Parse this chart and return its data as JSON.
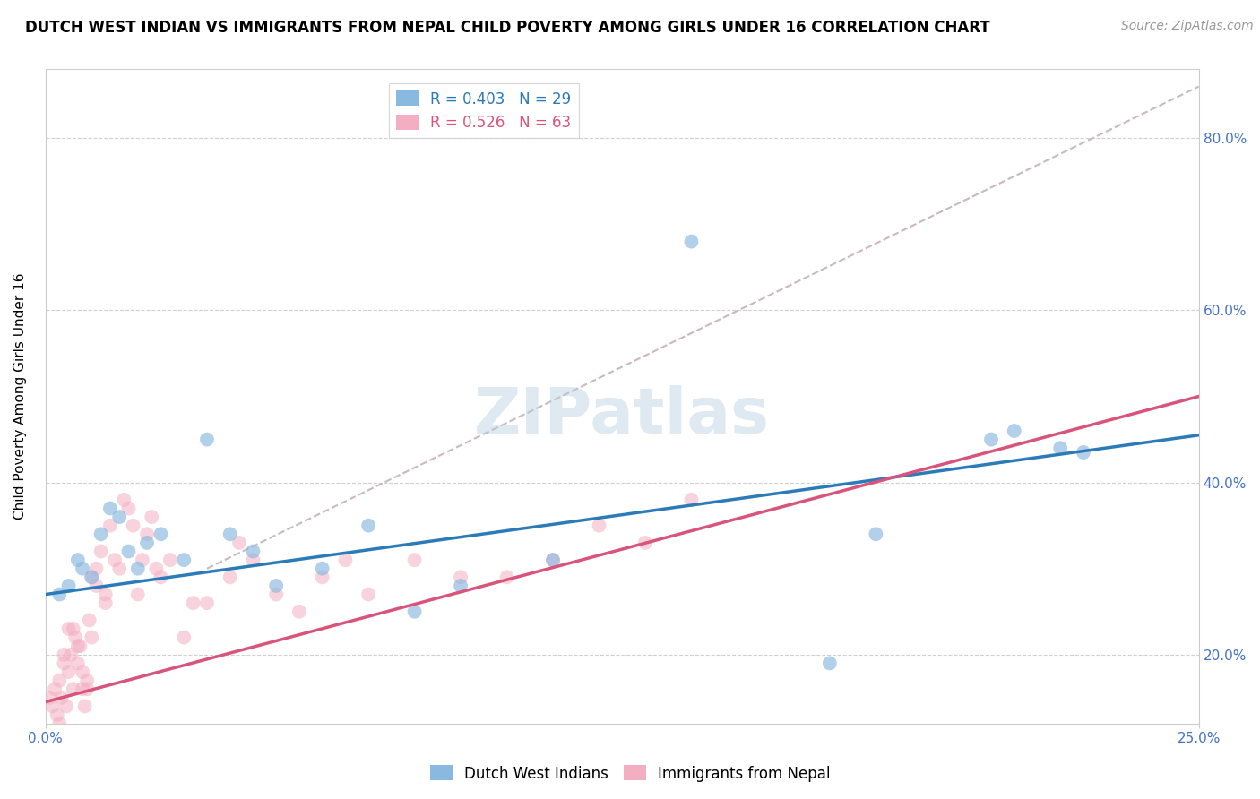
{
  "title": "DUTCH WEST INDIAN VS IMMIGRANTS FROM NEPAL CHILD POVERTY AMONG GIRLS UNDER 16 CORRELATION CHART",
  "source": "Source: ZipAtlas.com",
  "ylabel": "Child Poverty Among Girls Under 16",
  "watermark": "ZIPatlas",
  "xlim": [
    0.0,
    25.0
  ],
  "ylim": [
    12.0,
    88.0
  ],
  "ytick_values": [
    20.0,
    40.0,
    60.0,
    80.0
  ],
  "blue_R": 0.403,
  "blue_N": 29,
  "pink_R": 0.526,
  "pink_N": 63,
  "blue_color": "#89b8e0",
  "pink_color": "#f4aec2",
  "blue_line_color": "#2b7bb9",
  "pink_line_color": "#d9547a",
  "gray_dash_color": "#ccb8c0",
  "legend_label_blue": "Dutch West Indians",
  "legend_label_pink": "Immigrants from Nepal",
  "blue_scatter_x": [
    0.3,
    0.5,
    0.7,
    0.8,
    1.0,
    1.2,
    1.4,
    1.6,
    1.8,
    2.0,
    2.2,
    2.5,
    3.0,
    3.5,
    4.0,
    4.5,
    5.0,
    6.0,
    7.0,
    8.0,
    9.0,
    11.0,
    14.0,
    17.0,
    18.0,
    20.5,
    21.0,
    22.0,
    22.5
  ],
  "blue_scatter_y": [
    27.0,
    28.0,
    31.0,
    30.0,
    29.0,
    34.0,
    37.0,
    36.0,
    32.0,
    30.0,
    33.0,
    34.0,
    31.0,
    45.0,
    34.0,
    32.0,
    28.0,
    30.0,
    35.0,
    25.0,
    28.0,
    31.0,
    68.0,
    19.0,
    34.0,
    45.0,
    46.0,
    44.0,
    43.5
  ],
  "pink_scatter_x": [
    0.1,
    0.15,
    0.2,
    0.25,
    0.3,
    0.35,
    0.4,
    0.45,
    0.5,
    0.55,
    0.6,
    0.65,
    0.7,
    0.75,
    0.8,
    0.85,
    0.9,
    0.95,
    1.0,
    1.0,
    1.1,
    1.2,
    1.3,
    1.4,
    1.5,
    1.6,
    1.7,
    1.8,
    2.0,
    2.1,
    2.2,
    2.4,
    2.5,
    2.7,
    3.0,
    3.5,
    4.0,
    4.5,
    5.0,
    5.5,
    6.0,
    6.5,
    7.0,
    8.0,
    9.0,
    10.0,
    11.0,
    12.0,
    13.0,
    14.0,
    3.2,
    4.2,
    2.3,
    1.3,
    1.9,
    0.6,
    0.7,
    1.1,
    0.5,
    0.8,
    0.9,
    0.4,
    0.3
  ],
  "pink_scatter_y": [
    15.0,
    14.0,
    16.0,
    13.0,
    17.0,
    15.0,
    19.0,
    14.0,
    18.0,
    20.0,
    16.0,
    22.0,
    19.0,
    21.0,
    16.0,
    14.0,
    17.0,
    24.0,
    22.0,
    29.0,
    28.0,
    32.0,
    27.0,
    35.0,
    31.0,
    30.0,
    38.0,
    37.0,
    27.0,
    31.0,
    34.0,
    30.0,
    29.0,
    31.0,
    22.0,
    26.0,
    29.0,
    31.0,
    27.0,
    25.0,
    29.0,
    31.0,
    27.0,
    31.0,
    29.0,
    29.0,
    31.0,
    35.0,
    33.0,
    38.0,
    26.0,
    33.0,
    36.0,
    26.0,
    35.0,
    23.0,
    21.0,
    30.0,
    23.0,
    18.0,
    16.0,
    20.0,
    12.0
  ],
  "blue_line_x0": 0.0,
  "blue_line_y0": 27.0,
  "blue_line_x1": 25.0,
  "blue_line_y1": 45.5,
  "pink_line_x0": 0.0,
  "pink_line_y0": 14.5,
  "pink_line_x1": 25.0,
  "pink_line_y1": 50.0,
  "gray_dash_x0": 3.5,
  "gray_dash_y0": 30.0,
  "gray_dash_x1": 25.0,
  "gray_dash_y1": 86.0,
  "background_color": "#ffffff",
  "plot_bg_color": "#ffffff",
  "grid_color": "#d0d0d0",
  "title_fontsize": 12,
  "axis_label_fontsize": 11,
  "tick_fontsize": 11,
  "source_fontsize": 10,
  "watermark_fontsize": 52,
  "legend_fontsize": 12
}
